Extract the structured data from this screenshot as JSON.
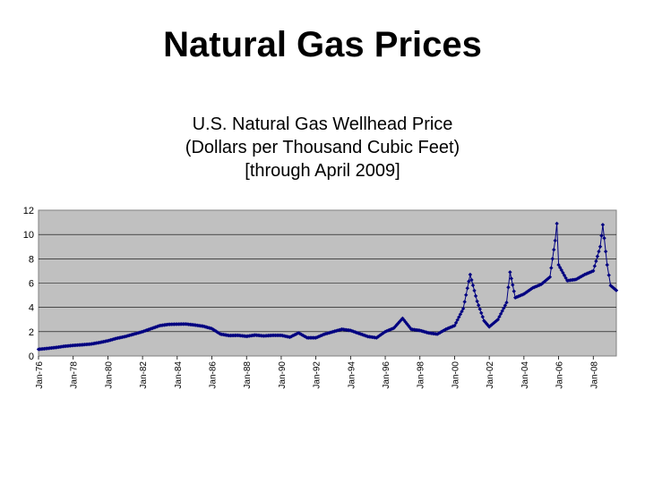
{
  "slide": {
    "title": "Natural Gas Prices"
  },
  "chart_data": {
    "type": "line",
    "title": "U.S. Natural Gas Wellhead Price",
    "subtitle_lines": [
      "(Dollars per Thousand Cubic Feet)",
      "[through April 2009]"
    ],
    "xlabel": "",
    "ylabel": "",
    "ylim": [
      0,
      12
    ],
    "yticks": [
      0,
      2,
      4,
      6,
      8,
      10,
      12
    ],
    "xlim": [
      1976.0,
      2009.33
    ],
    "x_tick_labels": [
      {
        "x": 1976,
        "label": "Jan-76"
      },
      {
        "x": 1978,
        "label": "Jan-78"
      },
      {
        "x": 1980,
        "label": "Jan-80"
      },
      {
        "x": 1982,
        "label": "Jan-82"
      },
      {
        "x": 1984,
        "label": "Jan-84"
      },
      {
        "x": 1986,
        "label": "Jan-86"
      },
      {
        "x": 1988,
        "label": "Jan-88"
      },
      {
        "x": 1990,
        "label": "Jan-90"
      },
      {
        "x": 1992,
        "label": "Jan-92"
      },
      {
        "x": 1994,
        "label": "Jan-94"
      },
      {
        "x": 1996,
        "label": "Jan-96"
      },
      {
        "x": 1998,
        "label": "Jan-98"
      },
      {
        "x": 2000,
        "label": "Jan-00"
      },
      {
        "x": 2002,
        "label": "Jan-02"
      },
      {
        "x": 2004,
        "label": "Jan-04"
      },
      {
        "x": 2006,
        "label": "Jan-06"
      },
      {
        "x": 2008,
        "label": "Jan-08"
      }
    ],
    "grid": "horizontal",
    "legend": "none",
    "plot_background": "#c0c0c0",
    "series_color": "#000080",
    "series": [
      {
        "points": [
          [
            1976.0,
            0.55
          ],
          [
            1976.5,
            0.62
          ],
          [
            1977.0,
            0.7
          ],
          [
            1977.5,
            0.8
          ],
          [
            1978.0,
            0.87
          ],
          [
            1978.5,
            0.92
          ],
          [
            1979.0,
            0.98
          ],
          [
            1979.5,
            1.1
          ],
          [
            1980.0,
            1.25
          ],
          [
            1980.5,
            1.45
          ],
          [
            1981.0,
            1.6
          ],
          [
            1981.5,
            1.8
          ],
          [
            1982.0,
            2.0
          ],
          [
            1982.5,
            2.25
          ],
          [
            1983.0,
            2.5
          ],
          [
            1983.5,
            2.6
          ],
          [
            1984.0,
            2.62
          ],
          [
            1984.5,
            2.63
          ],
          [
            1985.0,
            2.55
          ],
          [
            1985.5,
            2.45
          ],
          [
            1986.0,
            2.25
          ],
          [
            1986.5,
            1.8
          ],
          [
            1987.0,
            1.68
          ],
          [
            1987.5,
            1.7
          ],
          [
            1988.0,
            1.62
          ],
          [
            1988.5,
            1.72
          ],
          [
            1989.0,
            1.65
          ],
          [
            1989.5,
            1.7
          ],
          [
            1990.0,
            1.7
          ],
          [
            1990.5,
            1.55
          ],
          [
            1991.0,
            1.9
          ],
          [
            1991.5,
            1.5
          ],
          [
            1992.0,
            1.5
          ],
          [
            1992.5,
            1.8
          ],
          [
            1993.0,
            2.0
          ],
          [
            1993.5,
            2.2
          ],
          [
            1994.0,
            2.1
          ],
          [
            1994.5,
            1.85
          ],
          [
            1995.0,
            1.6
          ],
          [
            1995.5,
            1.5
          ],
          [
            1996.0,
            2.0
          ],
          [
            1996.5,
            2.3
          ],
          [
            1997.0,
            3.1
          ],
          [
            1997.5,
            2.2
          ],
          [
            1998.0,
            2.1
          ],
          [
            1998.5,
            1.9
          ],
          [
            1999.0,
            1.8
          ],
          [
            1999.5,
            2.2
          ],
          [
            2000.0,
            2.5
          ],
          [
            2000.5,
            3.9
          ],
          [
            2000.9,
            6.7
          ],
          [
            2001.3,
            4.5
          ],
          [
            2001.7,
            2.9
          ],
          [
            2002.0,
            2.4
          ],
          [
            2002.5,
            3.0
          ],
          [
            2003.0,
            4.4
          ],
          [
            2003.2,
            6.9
          ],
          [
            2003.5,
            4.8
          ],
          [
            2004.0,
            5.1
          ],
          [
            2004.5,
            5.6
          ],
          [
            2005.0,
            5.9
          ],
          [
            2005.5,
            6.5
          ],
          [
            2005.8,
            9.5
          ],
          [
            2005.9,
            10.9
          ],
          [
            2006.0,
            7.5
          ],
          [
            2006.5,
            6.2
          ],
          [
            2007.0,
            6.3
          ],
          [
            2007.5,
            6.7
          ],
          [
            2008.0,
            7.0
          ],
          [
            2008.4,
            9.0
          ],
          [
            2008.55,
            10.8
          ],
          [
            2008.8,
            7.5
          ],
          [
            2009.0,
            5.8
          ],
          [
            2009.33,
            5.4
          ]
        ]
      }
    ]
  }
}
